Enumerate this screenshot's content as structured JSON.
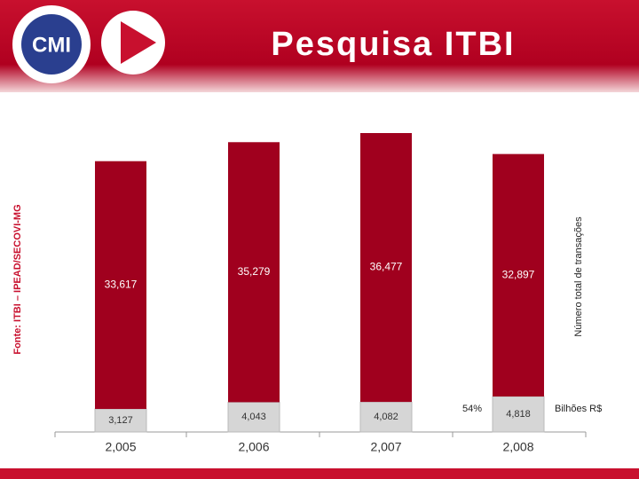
{
  "chart_data": {
    "type": "stacked-bar",
    "title": "Pesquisa ITBI",
    "logo": "CMI",
    "source": "Fonte: ITBI – IPEAD/SECOVI-MG",
    "categories": [
      "2,005",
      "2,006",
      "2,007",
      "2,008"
    ],
    "series": [
      {
        "name": "Bilhões R$",
        "color": "#d6d6d6",
        "values": [
          3127,
          4043,
          4082,
          4818
        ],
        "value_labels": [
          "3,127",
          "4,043",
          "4,082",
          "4,818"
        ]
      },
      {
        "name": "Número total de transações",
        "color": "#a0001e",
        "values": [
          33617,
          35279,
          36477,
          32897
        ],
        "value_labels": [
          "33,617",
          "35,279",
          "36,477",
          "32,897"
        ]
      }
    ],
    "annotation": "54%"
  }
}
